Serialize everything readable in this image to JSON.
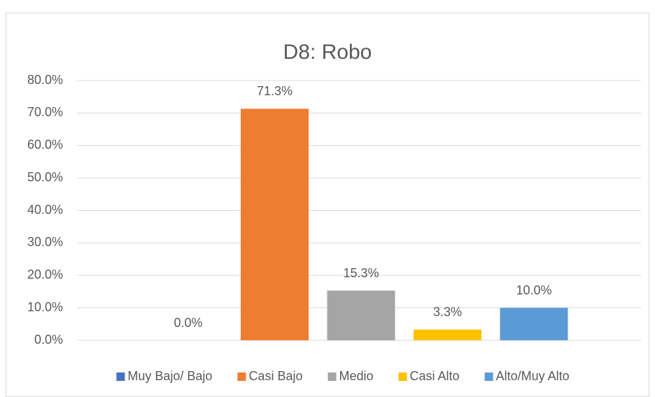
{
  "chart_data": {
    "type": "bar",
    "title": "D8: Robo",
    "series": [
      {
        "name": "Muy Bajo/ Bajo",
        "color": "#4472c4",
        "values": [
          0.0
        ],
        "value_labels": [
          "0.0%"
        ]
      },
      {
        "name": "Casi Bajo",
        "color": "#ed7d31",
        "values": [
          71.3
        ],
        "value_labels": [
          "71.3%"
        ]
      },
      {
        "name": "Medio",
        "color": "#a5a5a5",
        "values": [
          15.3
        ],
        "value_labels": [
          "15.3%"
        ]
      },
      {
        "name": "Casi Alto",
        "color": "#ffc000",
        "values": [
          3.3
        ],
        "value_labels": [
          "3.3%"
        ]
      },
      {
        "name": "Alto/Muy Alto",
        "color": "#5b9bd5",
        "values": [
          10.0
        ],
        "value_labels": [
          "10.0%"
        ]
      }
    ],
    "ylim": [
      0,
      80
    ],
    "yticks": [
      {
        "value": 0,
        "label": "0.0%"
      },
      {
        "value": 10,
        "label": "10.0%"
      },
      {
        "value": 20,
        "label": "20.0%"
      },
      {
        "value": 30,
        "label": "30.0%"
      },
      {
        "value": 40,
        "label": "40.0%"
      },
      {
        "value": 50,
        "label": "50.0%"
      },
      {
        "value": 60,
        "label": "60.0%"
      },
      {
        "value": 70,
        "label": "70.0%"
      },
      {
        "value": 80,
        "label": "80.0%"
      }
    ],
    "grid": true,
    "legend": "bottom"
  }
}
